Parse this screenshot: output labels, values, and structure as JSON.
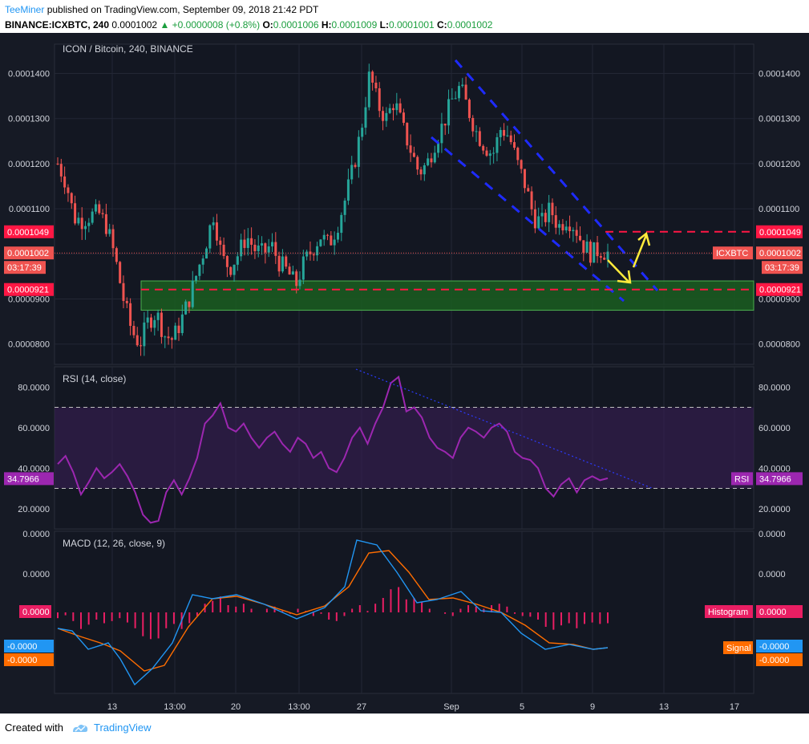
{
  "header": {
    "author": "TeeMiner",
    "published": " published on TradingView.com, September 09, 2018 21:42 PDT",
    "symbol": "BINANCE:ICXBTC, 240",
    "last": "0.0001002",
    "change": "▲ +0.0000008 (+0.8%)",
    "o_label": "O:",
    "o": "0.0001006",
    "h_label": "H:",
    "h": "0.0001009",
    "l_label": "L:",
    "l": "0.0001001",
    "c_label": "C:",
    "c": "0.0001002"
  },
  "footer": {
    "created_with": "Created with",
    "brand": "TradingView"
  },
  "colors": {
    "up": "#26a69a",
    "down": "#ef5350",
    "rsi": "#9c27b0",
    "macd": "#2196f3",
    "signal": "#ff6d00",
    "histogram": "#e91e63",
    "zone": "#1b5e20",
    "arrow": "#ffeb3b",
    "trend": "#1e2bff"
  },
  "chart_data": [
    {
      "type": "candlestick",
      "title": "ICON / Bitcoin, 240, BINANCE",
      "ylim": [
        7.55e-05,
        0.0001465
      ],
      "y_ticks": [
        "0.0000800",
        "0.0000900",
        "0.0001000",
        "0.0001100",
        "0.0001200",
        "0.0001300",
        "0.0001400"
      ],
      "x_ticks": [
        "13",
        "13:00",
        "20",
        "13:00",
        "27",
        "Sep",
        "5",
        "9",
        "13",
        "17"
      ],
      "close_path": [
        0.00012,
        0.000116,
        0.000108,
        0.0001075,
        0.0001085,
        0.000109,
        0.000106,
        9.9e-05,
        9e-05,
        8.3e-05,
        8e-05,
        8.5e-05,
        8.7e-05,
        8.2e-05,
        8.1e-05,
        8.5e-05,
        9e-05,
        9.6e-05,
        0.000102,
        0.000109,
        9.9e-05,
        9.7e-05,
        0.0001,
        0.000104,
        0.000101,
        0.0001,
        0.000102,
        9.8e-05,
        9.6e-05,
        9.3e-05,
        9.8e-05,
        0.000101,
        0.000104,
        0.000102,
        0.000106,
        0.000112,
        0.000119,
        0.000128,
        0.00014,
        0.000133,
        0.00013,
        0.000134,
        0.000128,
        0.000123,
        0.000118,
        0.00012,
        0.000125,
        0.000129,
        0.000134,
        0.000137,
        0.000132,
        0.000127,
        0.000124,
        0.000122,
        0.000128,
        0.000126,
        0.00012,
        0.000115,
        0.000108,
        0.000107,
        0.00011,
        0.000106,
        0.000108,
        0.000106,
        0.000102,
        0.0001,
        0.000101,
        0.0001002
      ],
      "annotations": [
        {
          "label": "ICXBTC",
          "value": "0.0001002"
        },
        {
          "label": "countdown",
          "value": "03:17:39"
        },
        {
          "label": "resistance",
          "value": "0.0001049"
        },
        {
          "label": "support",
          "value": "0.0000921"
        }
      ],
      "support_zone": [
        8.75e-05,
        9.4e-05
      ]
    },
    {
      "type": "line",
      "title": "RSI (14, close)",
      "ylim": [
        10,
        90
      ],
      "y_ticks": [
        "20.0000",
        "40.0000",
        "60.0000",
        "80.0000"
      ],
      "bands": [
        30,
        70
      ],
      "series": [
        {
          "name": "RSI",
          "last": "34.7966",
          "values": [
            42,
            46,
            38,
            27,
            33,
            40,
            35,
            38,
            42,
            36,
            28,
            17,
            13,
            14,
            28,
            34,
            27,
            35,
            45,
            62,
            66,
            72,
            60,
            58,
            62,
            55,
            50,
            55,
            58,
            52,
            48,
            55,
            52,
            45,
            48,
            40,
            38,
            45,
            55,
            60,
            52,
            62,
            70,
            82,
            85,
            68,
            70,
            65,
            55,
            50,
            48,
            45,
            55,
            60,
            58,
            55,
            60,
            62,
            58,
            48,
            45,
            44,
            40,
            30,
            26,
            32,
            35,
            28,
            34,
            36,
            34,
            35
          ]
        }
      ]
    },
    {
      "type": "line",
      "title": "MACD (12, 26, close, 9)",
      "y_ticks": [
        "0.0000",
        "0.0000",
        "0.0000"
      ],
      "series": [
        {
          "name": "MACD",
          "last": "-0.0000"
        },
        {
          "name": "Signal",
          "last": "-0.0000"
        },
        {
          "name": "Histogram",
          "last": "0.0000"
        }
      ]
    }
  ]
}
